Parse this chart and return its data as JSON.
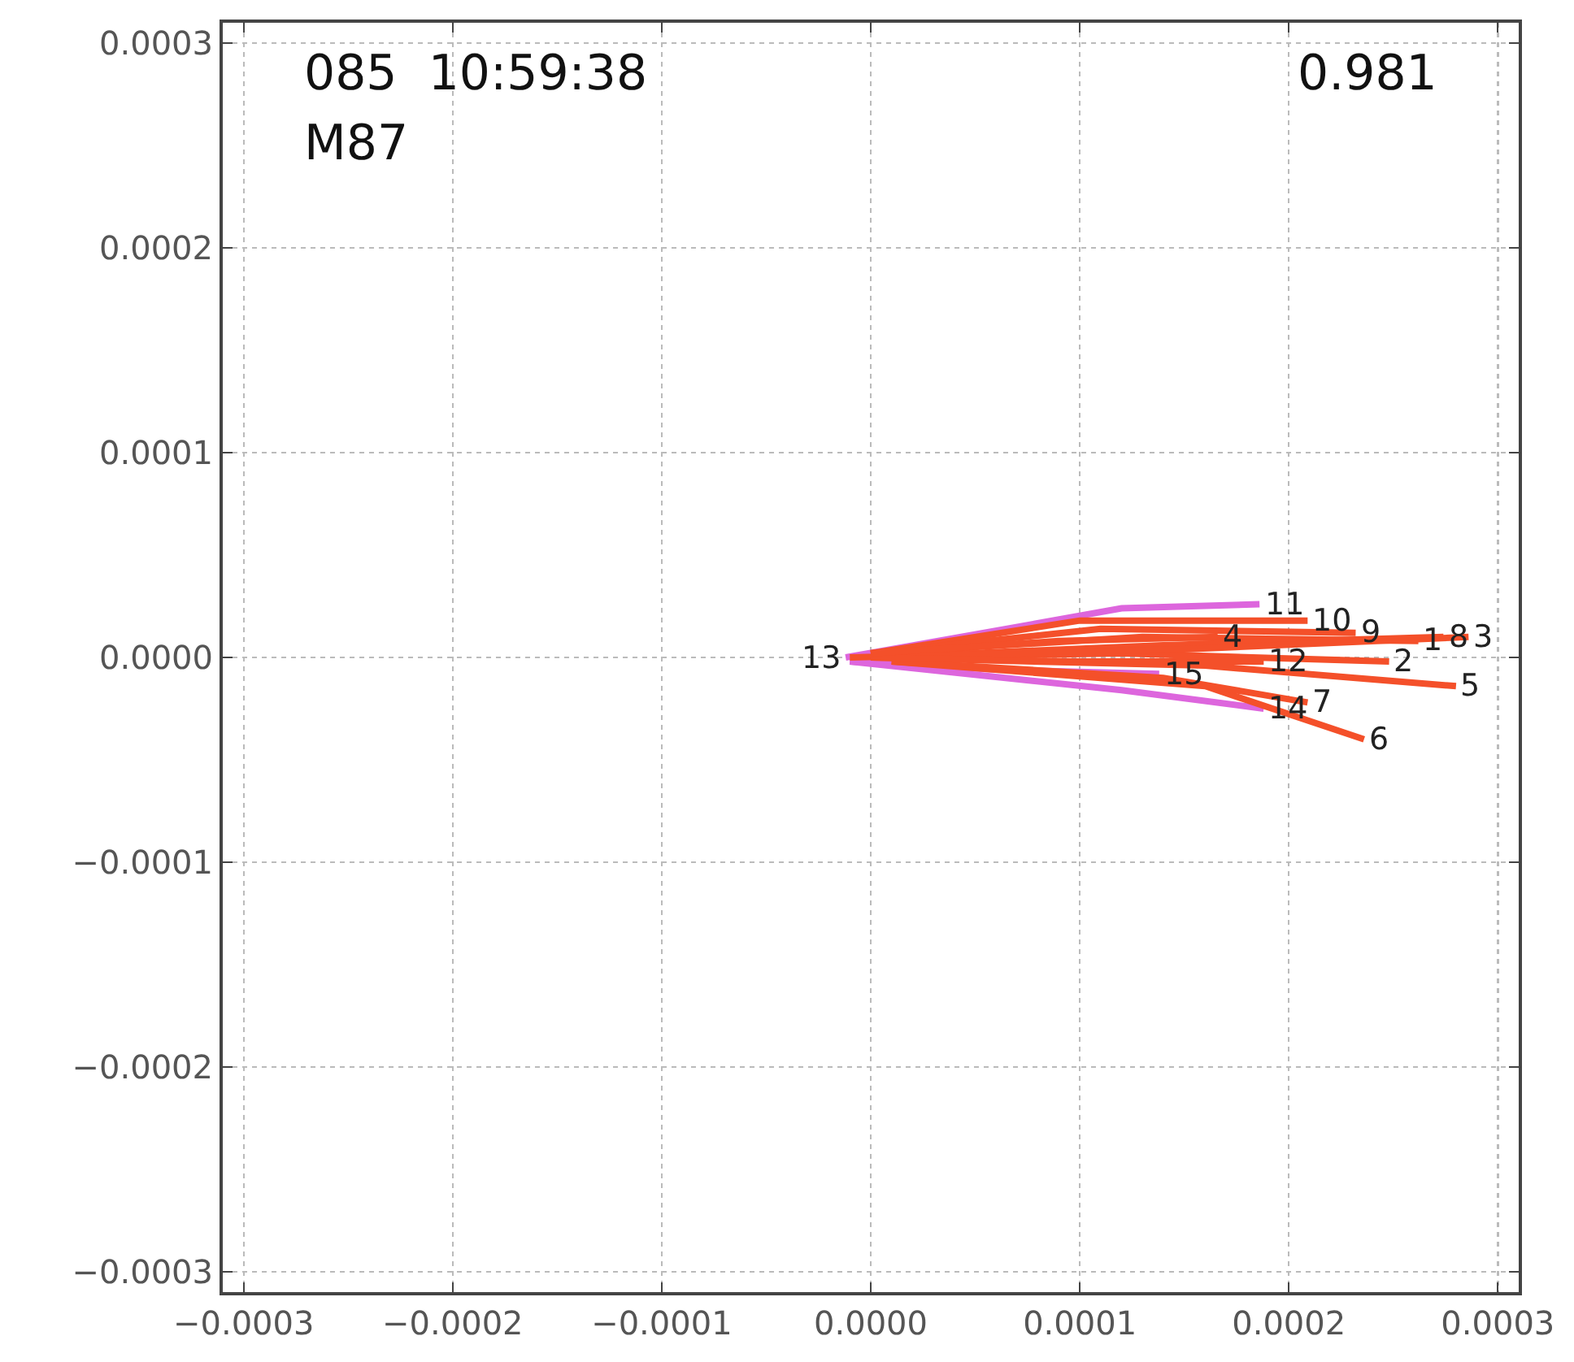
{
  "chart_data": {
    "type": "line",
    "xlim": [
      -0.00031,
      0.00031
    ],
    "ylim": [
      -0.00031,
      0.00031
    ],
    "xticks": [
      {
        "value": -0.0003,
        "label": "−0.0003"
      },
      {
        "value": -0.0002,
        "label": "−0.0002"
      },
      {
        "value": -0.0001,
        "label": "−0.0001"
      },
      {
        "value": 0,
        "label": "0.0000"
      },
      0.0001,
      0.0002,
      0.0003
    ],
    "yticks": [
      {
        "value": -0.0003,
        "label": "−0.0003"
      },
      {
        "value": -0.0002,
        "label": "−0.0002"
      },
      {
        "value": -0.0001,
        "label": "−0.0001"
      },
      {
        "value": 0,
        "label": "0.0000"
      },
      0.0001,
      0.0002,
      0.0003
    ],
    "grid": true,
    "marker": "none",
    "line_style": "solid",
    "series": [
      {
        "color": "#dd66dd",
        "x": [
          -1.2e-05,
          0.00012,
          0.000186
        ],
        "values": [
          0.0,
          2.4e-05,
          2.6e-05
        ]
      },
      {
        "color": "#dd66dd",
        "x": [
          -1e-05,
          0.00012,
          0.000188
        ],
        "values": [
          -2e-06,
          -1.6e-05,
          -2.5e-05
        ]
      },
      {
        "color": "#dd66dd",
        "x": [
          -1e-05,
          6e-05,
          0.000138
        ],
        "values": [
          -2e-06,
          -6e-06,
          -8e-06
        ]
      },
      {
        "color": "#f4502a",
        "x": [
          0.0,
          0.0001,
          0.000209
        ],
        "values": [
          2e-06,
          1.8e-05,
          1.8e-05
        ]
      },
      {
        "color": "#f4502a",
        "x": [
          0.0,
          0.00011,
          0.000232
        ],
        "values": [
          2e-06,
          1.4e-05,
          1.2e-05
        ]
      },
      {
        "color": "#f4502a",
        "x": [
          0.0,
          0.00012,
          0.000248
        ],
        "values": [
          0.0,
          2e-06,
          -2e-06
        ]
      },
      {
        "color": "#f4502a",
        "x": [
          0.0,
          0.00013,
          0.000262
        ],
        "values": [
          2e-06,
          1e-05,
          8e-06
        ]
      },
      {
        "color": "#f4502a",
        "x": [
          0.0,
          0.00014,
          0.000274
        ],
        "values": [
          0.0,
          6e-06,
          1e-05
        ]
      },
      {
        "color": "#f4502a",
        "x": [
          -1e-05,
          0.00015,
          0.000286
        ],
        "values": [
          0.0,
          4e-06,
          1e-05
        ]
      },
      {
        "color": "#f4502a",
        "x": [
          0.0,
          0.00016,
          0.00028
        ],
        "values": [
          0.0,
          -4e-06,
          -1.4e-05
        ]
      },
      {
        "color": "#f4502a",
        "x": [
          1e-05,
          0.00016,
          0.000236
        ],
        "values": [
          -2e-06,
          -1.4e-05,
          -4e-05
        ]
      },
      {
        "color": "#f4502a",
        "x": [
          1e-05,
          0.00014,
          0.000209
        ],
        "values": [
          -2e-06,
          -1e-05,
          -2.2e-05
        ]
      },
      {
        "color": "#f4502a",
        "x": [
          0.0,
          0.0001,
          0.000188
        ],
        "values": [
          0.0,
          -2e-06,
          -2e-06
        ]
      },
      {
        "color": "#f4502a",
        "x": [
          0.0,
          9e-05,
          0.000166
        ],
        "values": [
          2e-06,
          8e-06,
          1e-05
        ]
      }
    ],
    "annotations": [
      "085  10:59:38",
      "M87",
      "0.981",
      {
        "text": "13",
        "x": -1.2e-05,
        "y": 0.0
      },
      {
        "text": "11",
        "x": 0.000186,
        "y": 2.6e-05
      },
      {
        "text": "10",
        "x": 0.000209,
        "y": 1.8e-05
      },
      {
        "text": "9",
        "x": 0.000232,
        "y": 1.2e-05
      },
      {
        "text": "2",
        "x": 0.000248,
        "y": -2e-06
      },
      {
        "text": "1",
        "x": 0.000262,
        "y": 8e-06
      },
      {
        "text": "8",
        "x": 0.000274,
        "y": 1e-05
      },
      {
        "text": "3",
        "x": 0.000286,
        "y": 1e-05
      },
      {
        "text": "5",
        "x": 0.00028,
        "y": -1.4e-05
      },
      {
        "text": "6",
        "x": 0.000236,
        "y": -4e-05
      },
      {
        "text": "14",
        "x": 0.000188,
        "y": -2.5e-05
      },
      {
        "text": "7",
        "x": 0.000209,
        "y": -2.2e-05
      },
      {
        "text": "15",
        "x": 0.000138,
        "y": -8e-06
      },
      {
        "text": "12",
        "x": 0.000188,
        "y": -2e-06
      },
      {
        "text": "4",
        "x": 0.000166,
        "y": 1e-05
      }
    ]
  }
}
